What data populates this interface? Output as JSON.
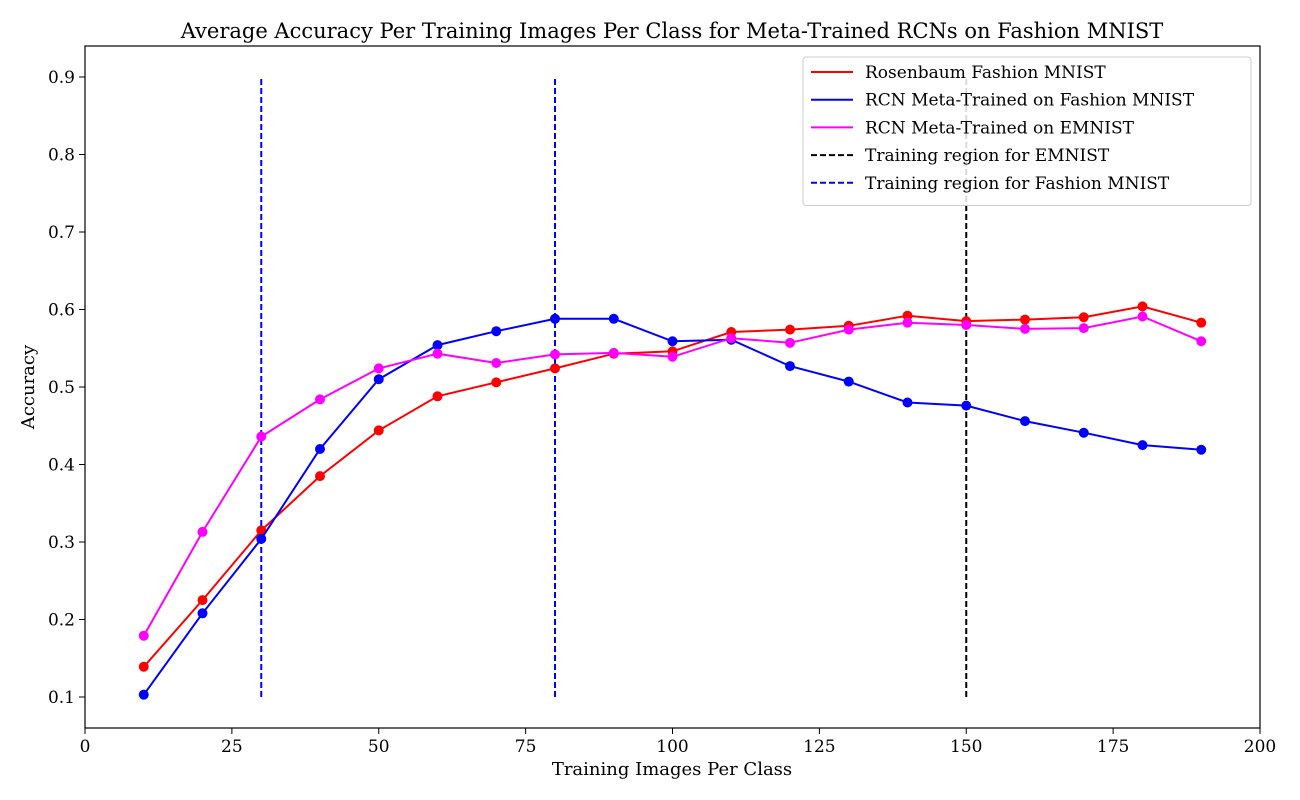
{
  "chart_data": {
    "type": "line",
    "title": "Average Accuracy Per Training Images Per Class for Meta-Trained RCNs on Fashion MNIST",
    "xlabel": "Training Images Per Class",
    "ylabel": "Accuracy",
    "xlim": [
      0,
      200
    ],
    "ylim": [
      0.06,
      0.94
    ],
    "xticks": [
      0,
      25,
      50,
      75,
      100,
      125,
      150,
      175,
      200
    ],
    "yticks": [
      0.1,
      0.2,
      0.3,
      0.4,
      0.5,
      0.6,
      0.7,
      0.8,
      0.9
    ],
    "ytick_labels": [
      "0.1",
      "0.2",
      "0.3",
      "0.4",
      "0.5",
      "0.6",
      "0.7",
      "0.8",
      "0.9"
    ],
    "grid": false,
    "legend_position": "top-right",
    "x": [
      10,
      20,
      30,
      40,
      50,
      60,
      70,
      80,
      90,
      100,
      110,
      120,
      130,
      140,
      150,
      160,
      170,
      180,
      190
    ],
    "series": [
      {
        "name": "Rosenbaum Fashion MNIST",
        "color": "#ff0000",
        "values": [
          0.139,
          0.225,
          0.315,
          0.385,
          0.444,
          0.488,
          0.506,
          0.524,
          0.543,
          0.546,
          0.571,
          0.574,
          0.579,
          0.592,
          0.585,
          0.587,
          0.59,
          0.604,
          0.583
        ]
      },
      {
        "name": "RCN Meta-Trained on Fashion MNIST",
        "color": "#0000ff",
        "values": [
          0.103,
          0.208,
          0.304,
          0.42,
          0.51,
          0.554,
          0.572,
          0.588,
          0.588,
          0.559,
          0.561,
          0.527,
          0.507,
          0.48,
          0.476,
          0.456,
          0.441,
          0.425,
          0.419
        ]
      },
      {
        "name": "RCN Meta-Trained on EMNIST",
        "color": "#ff00ff",
        "values": [
          0.179,
          0.313,
          0.436,
          0.484,
          0.524,
          0.543,
          0.531,
          0.542,
          0.544,
          0.539,
          0.563,
          0.557,
          0.574,
          0.583,
          0.58,
          0.575,
          0.576,
          0.591,
          0.559
        ]
      }
    ],
    "vlines": [
      {
        "name": "Training region for EMNIST",
        "color": "#000000",
        "x": [
          150
        ],
        "ymin": 0.1,
        "ymax": 0.9
      },
      {
        "name": "Training region for Fashion MNIST",
        "color": "#0000ff",
        "x": [
          30,
          80
        ],
        "ymin": 0.1,
        "ymax": 0.9
      }
    ]
  }
}
